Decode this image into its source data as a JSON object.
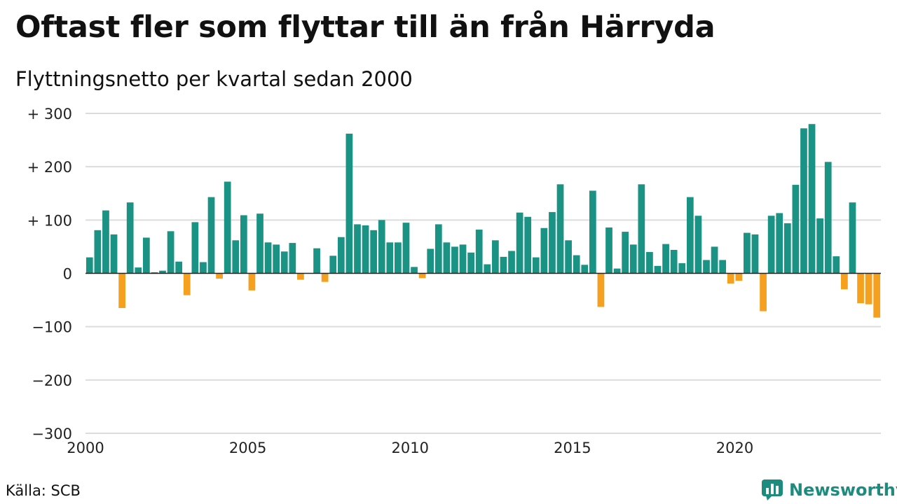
{
  "title": "Oftast fler som flyttar till än från Härryda",
  "subtitle": "Flyttningsnetto per kvartal sedan 2000",
  "source": "Källa: SCB",
  "brand": {
    "name": "Newsworthy",
    "icon": "newsworthy-logo-icon",
    "color": "#1d8c7f"
  },
  "colors": {
    "positive": "#1a9385",
    "negative": "#f5a01e",
    "grid": "#dcdcdc",
    "zero_line": "#222222"
  },
  "chart_data": {
    "type": "bar",
    "title": "Oftast fler som flyttar till än från Härryda",
    "subtitle": "Flyttningsnetto per kvartal sedan 2000",
    "xlabel": "",
    "ylabel": "",
    "ylim": [
      -300,
      300
    ],
    "grid": true,
    "x_start": "2000",
    "x_tick_labels": [
      "2000",
      "2005",
      "2010",
      "2015",
      "2020"
    ],
    "y_ticks": [
      -300,
      -200,
      -100,
      0,
      100,
      200,
      300
    ],
    "y_tick_labels": [
      "−300",
      "−200",
      "−100",
      "0",
      "+ 100",
      "+ 200",
      "+ 300"
    ],
    "values": [
      30,
      81,
      118,
      73,
      -65,
      133,
      11,
      67,
      2,
      5,
      79,
      22,
      -41,
      96,
      21,
      143,
      -10,
      172,
      62,
      109,
      -32,
      112,
      58,
      54,
      41,
      57,
      -12,
      0,
      47,
      -16,
      33,
      68,
      262,
      92,
      90,
      81,
      100,
      58,
      58,
      95,
      12,
      -9,
      46,
      92,
      58,
      50,
      54,
      39,
      82,
      17,
      62,
      31,
      42,
      114,
      106,
      30,
      85,
      115,
      167,
      62,
      34,
      16,
      155,
      -63,
      86,
      9,
      78,
      54,
      167,
      40,
      14,
      55,
      44,
      19,
      143,
      108,
      25,
      50,
      25,
      -19,
      -14,
      76,
      73,
      -71,
      108,
      113,
      94,
      166,
      272,
      280,
      103,
      209,
      32,
      -30,
      133,
      -56,
      -58,
      -83
    ]
  }
}
